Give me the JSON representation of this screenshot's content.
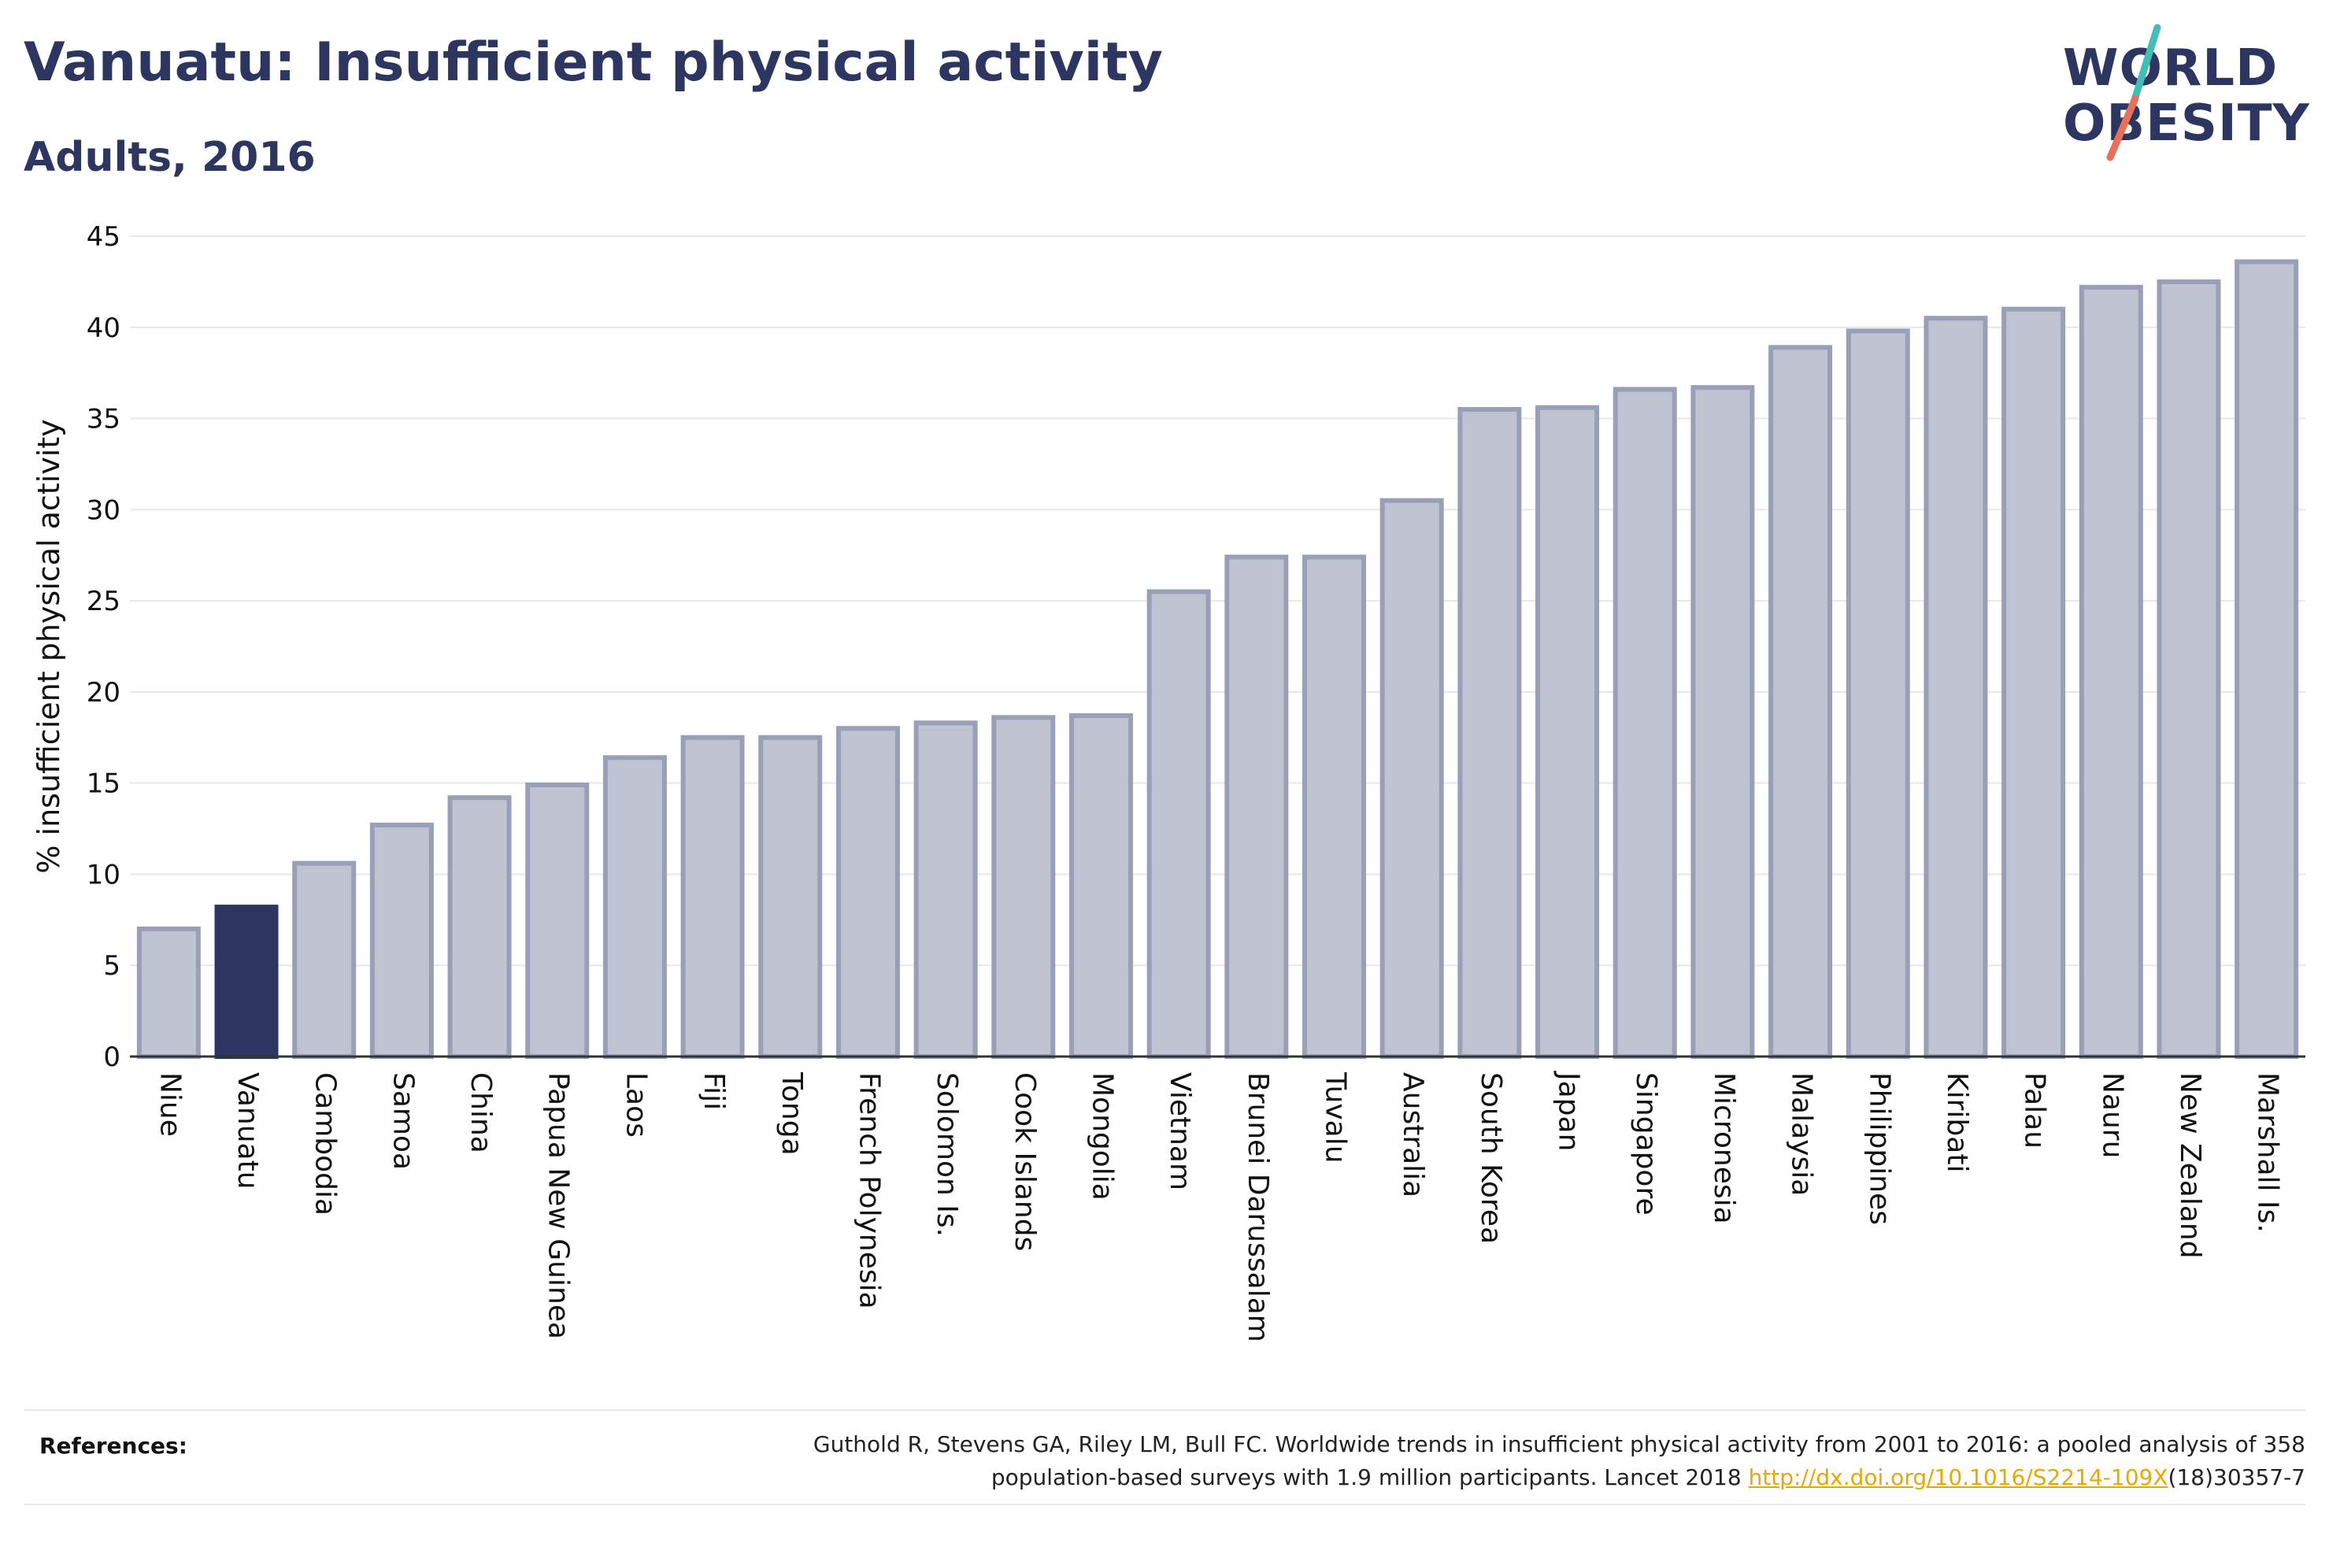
{
  "header": {
    "title": "Vanuatu: Insufficient physical activity",
    "subtitle": "Adults, 2016"
  },
  "logo": {
    "line1": "WORLD",
    "line2": "OBESITY",
    "accent_colors": [
      "#3fbfb5",
      "#e8705a"
    ]
  },
  "colors": {
    "highlight_bar": "#2d3561",
    "other_bar_fill": "#bfc2d0",
    "other_bar_stroke": "#9a9fb8",
    "grid": "#e6e6ea",
    "axis_text": "#111111",
    "link": "#e8a800"
  },
  "chart_data": {
    "type": "bar",
    "title": "Vanuatu: Insufficient physical activity",
    "subtitle": "Adults, 2016",
    "xlabel": "",
    "ylabel": "% insufficient physical activity",
    "ylim": [
      0,
      45
    ],
    "yticks": [
      0,
      5,
      10,
      15,
      20,
      25,
      30,
      35,
      40,
      45
    ],
    "grid": true,
    "highlight": "Vanuatu",
    "categories": [
      "Niue",
      "Vanuatu",
      "Cambodia",
      "Samoa",
      "China",
      "Papua New Guinea",
      "Laos",
      "Fiji",
      "Tonga",
      "French Polynesia",
      "Solomon Is.",
      "Cook Islands",
      "Mongolia",
      "Vietnam",
      "Brunei Darussalam",
      "Tuvalu",
      "Australia",
      "South Korea",
      "Japan",
      "Singapore",
      "Micronesia",
      "Malaysia",
      "Philippines",
      "Kiribati",
      "Palau",
      "Nauru",
      "New Zealand",
      "Marshall Is."
    ],
    "values": [
      7.0,
      8.2,
      10.6,
      12.7,
      14.2,
      14.9,
      16.4,
      17.5,
      17.5,
      18.0,
      18.3,
      18.6,
      18.7,
      25.5,
      27.4,
      27.4,
      30.5,
      35.5,
      35.6,
      36.6,
      36.7,
      38.9,
      39.8,
      40.5,
      41.0,
      42.2,
      42.5,
      43.6
    ]
  },
  "references": {
    "heading": "References:",
    "line1": "Guthold R, Stevens GA, Riley LM, Bull FC. Worldwide trends in insufficient physical activity from 2001 to 2016: a pooled analysis of 358",
    "line2_prefix": "population-based surveys with 1.9 million participants. Lancet 2018 ",
    "link": "http://dx.doi.org/10.1016/S2214-109X",
    "line2_suffix": "(18)30357-7"
  }
}
